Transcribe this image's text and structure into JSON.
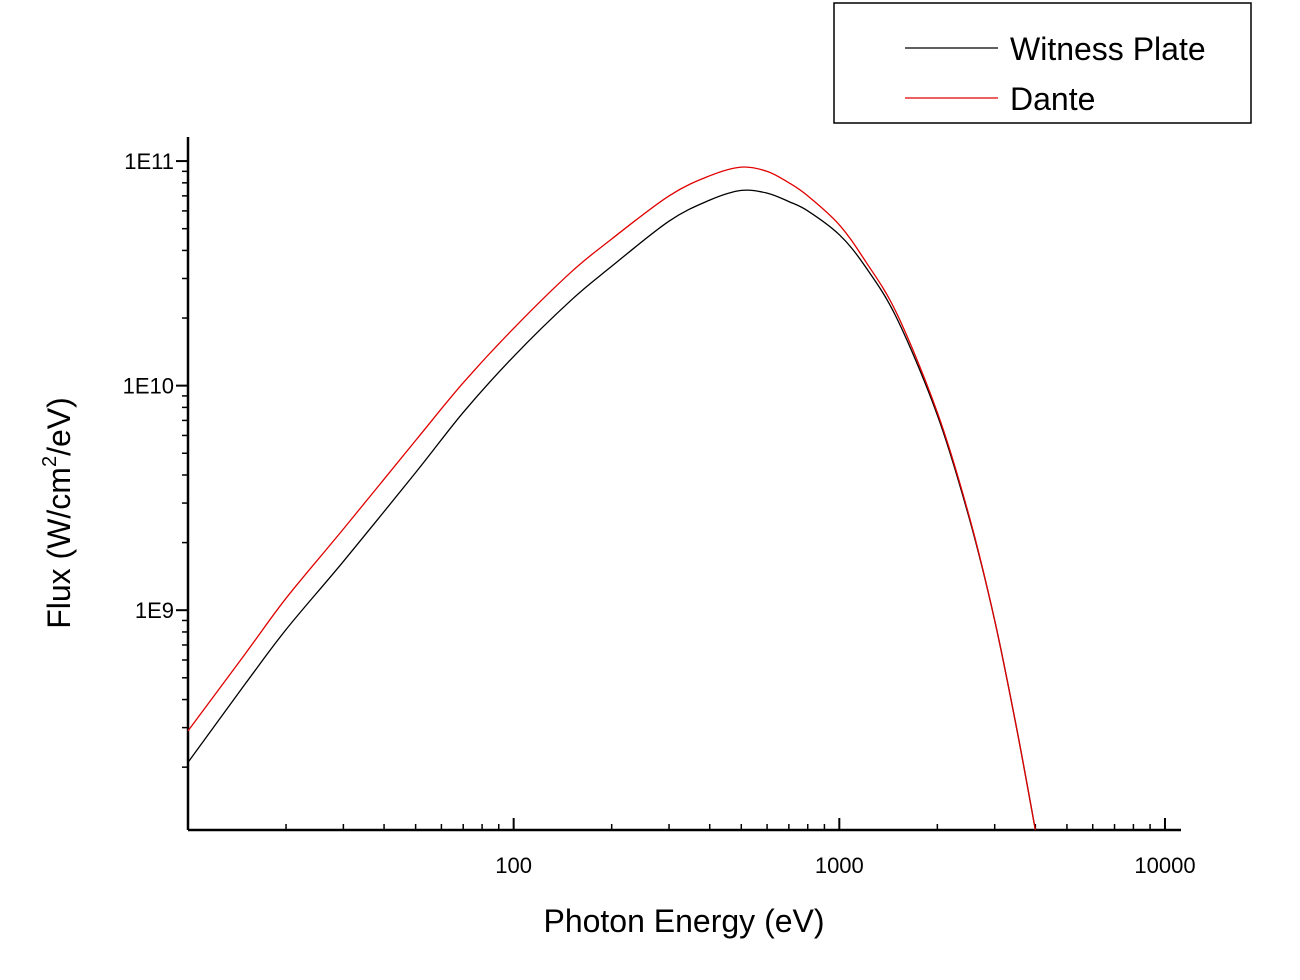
{
  "chart_data": {
    "type": "line",
    "xlabel": "Photon Energy (eV)",
    "ylabel": {
      "prefix": "Flux (W/cm",
      "superscript": "2",
      "suffix": "/eV)"
    },
    "x_scale": "log",
    "y_scale": "log",
    "xlim": [
      10,
      11200
    ],
    "ylim": [
      105000000,
      128000000000
    ],
    "x_tick_labels": [
      {
        "value": 100,
        "label": "100"
      },
      {
        "value": 1000,
        "label": "1000"
      },
      {
        "value": 10000,
        "label": "10000"
      }
    ],
    "y_tick_labels": [
      {
        "value": 1000000000,
        "label": "1E9"
      },
      {
        "value": 10000000000,
        "label": "1E10"
      },
      {
        "value": 100000000000,
        "label": "1E11"
      }
    ],
    "grid": false,
    "legend_position": "top-right",
    "series": [
      {
        "name": "Witness Plate",
        "color": "#000000",
        "points": [
          [
            10,
            210000000
          ],
          [
            15,
            470000000
          ],
          [
            20,
            820000000
          ],
          [
            30,
            1650000000
          ],
          [
            50,
            4100000000
          ],
          [
            70,
            7600000000
          ],
          [
            100,
            13500000000
          ],
          [
            150,
            24000000000
          ],
          [
            200,
            34000000000
          ],
          [
            300,
            54000000000
          ],
          [
            400,
            67000000000
          ],
          [
            500,
            74000000000
          ],
          [
            600,
            72000000000
          ],
          [
            700,
            66000000000
          ],
          [
            800,
            60000000000
          ],
          [
            1000,
            47000000000
          ],
          [
            1200,
            34000000000
          ],
          [
            1500,
            20000000000
          ],
          [
            2000,
            7400000000
          ],
          [
            2500,
            2600000000
          ],
          [
            3000,
            900000000
          ],
          [
            3500,
            300000000
          ],
          [
            4000,
            105000000
          ]
        ]
      },
      {
        "name": "Dante",
        "color": "#e00000",
        "points": [
          [
            10,
            290000000
          ],
          [
            15,
            640000000
          ],
          [
            20,
            1130000000
          ],
          [
            30,
            2300000000
          ],
          [
            50,
            5700000000
          ],
          [
            70,
            10300000000
          ],
          [
            100,
            18000000000
          ],
          [
            150,
            32000000000
          ],
          [
            200,
            45000000000
          ],
          [
            300,
            70000000000
          ],
          [
            400,
            86000000000
          ],
          [
            500,
            94000000000
          ],
          [
            600,
            90000000000
          ],
          [
            700,
            80000000000
          ],
          [
            800,
            70000000000
          ],
          [
            1000,
            52000000000
          ],
          [
            1200,
            36000000000
          ],
          [
            1500,
            21000000000
          ],
          [
            2000,
            7600000000
          ],
          [
            2500,
            2650000000
          ],
          [
            3000,
            900000000
          ],
          [
            3500,
            300000000
          ],
          [
            4000,
            105000000
          ]
        ]
      }
    ]
  }
}
